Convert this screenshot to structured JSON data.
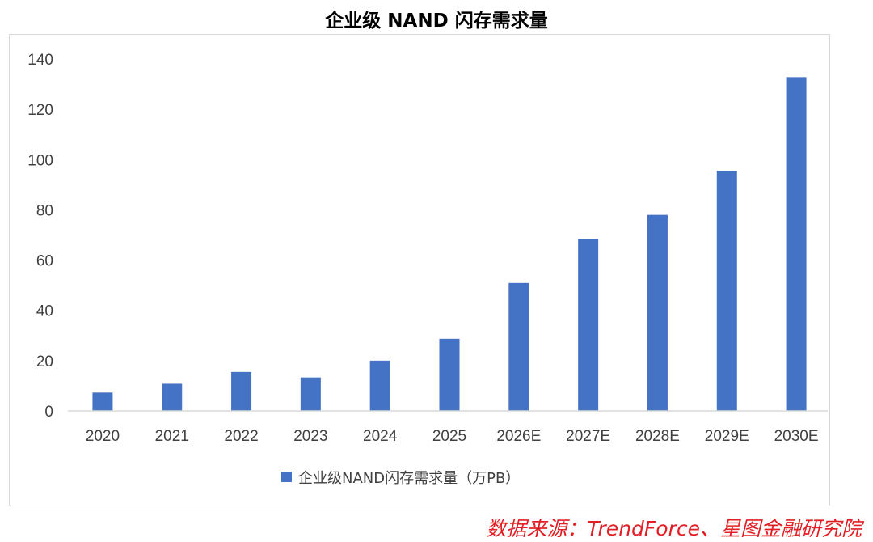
{
  "page": {
    "title": "企业级 NAND 闪存需求量",
    "source": "数据来源：TrendForce、星图金融研究院"
  },
  "chart_data": {
    "type": "bar",
    "title": "企业级 NAND 闪存需求量",
    "xlabel": "",
    "ylabel": "",
    "categories": [
      "2020",
      "2021",
      "2022",
      "2023",
      "2024",
      "2025",
      "2026E",
      "2027E",
      "2028E",
      "2029E",
      "2030E"
    ],
    "series": [
      {
        "name": "企业级NAND闪存需求量（万PB）",
        "values": [
          7.3,
          10.8,
          15.5,
          13.3,
          20.0,
          28.7,
          50.9,
          68.3,
          78.0,
          95.5,
          132.8
        ],
        "color": "#4472c4"
      }
    ],
    "ylim": [
      0,
      140
    ],
    "yticks": [
      0,
      20,
      40,
      60,
      80,
      100,
      120,
      140
    ],
    "grid": false,
    "legend": "bottom"
  }
}
